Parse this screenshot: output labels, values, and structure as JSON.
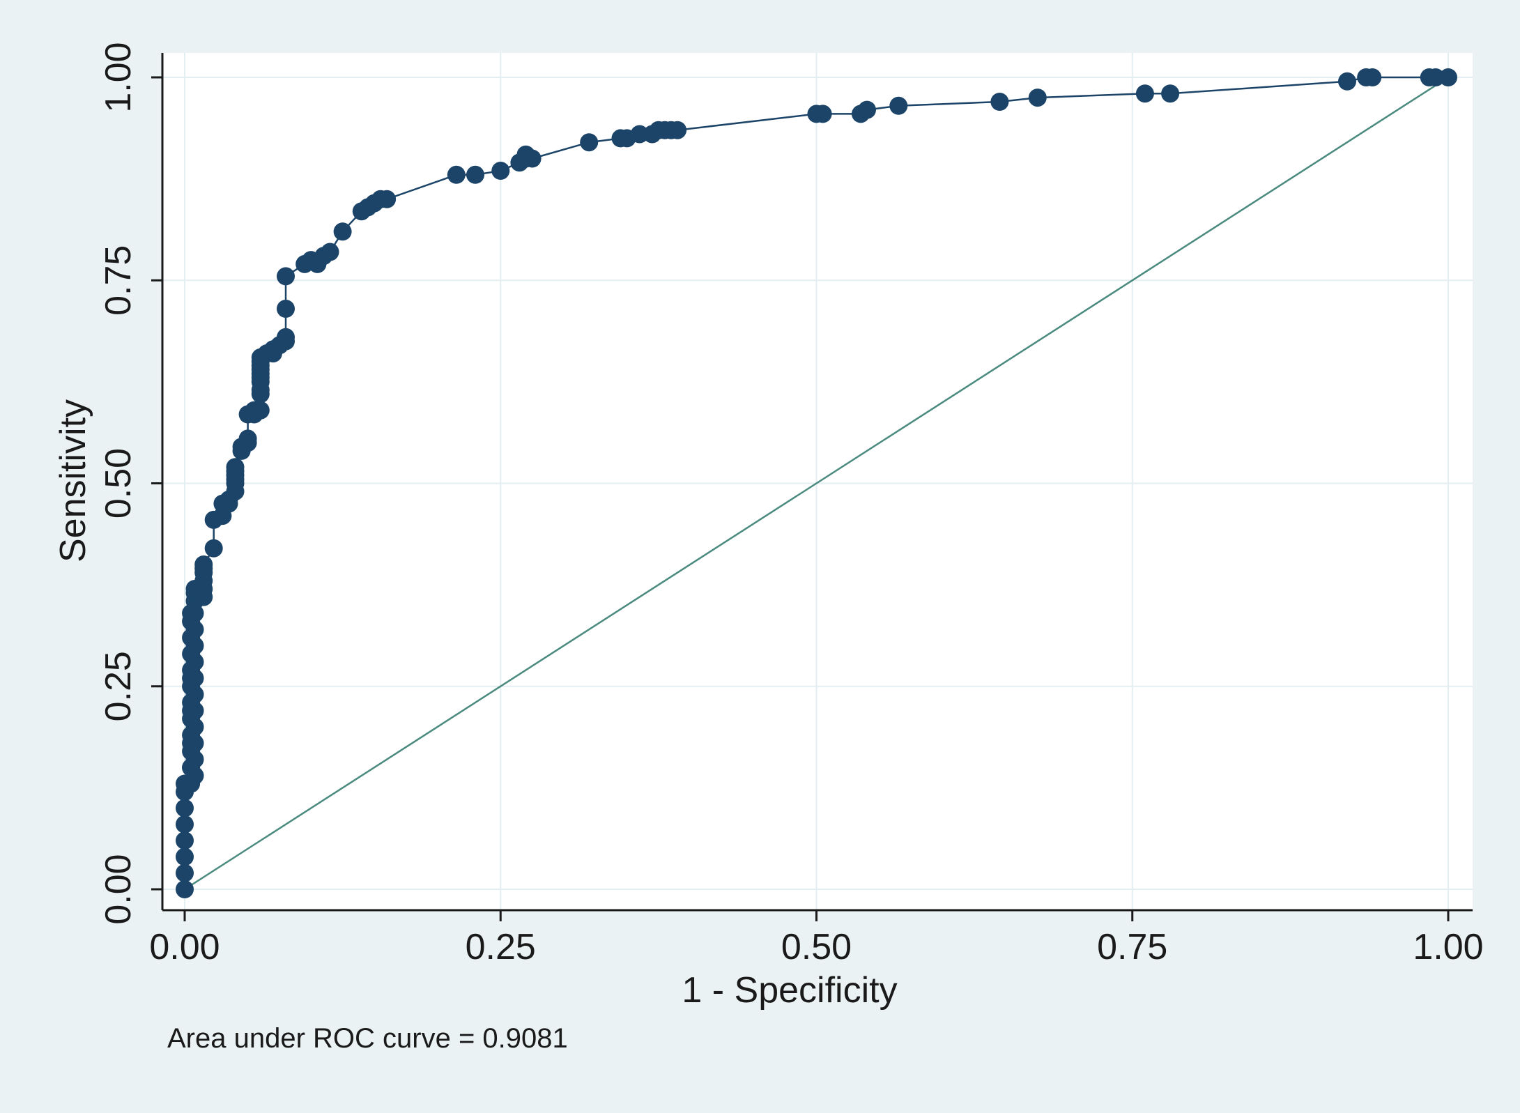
{
  "chart_data": {
    "type": "line",
    "title": "",
    "xlabel": "1 - Specificity",
    "ylabel": "Sensitivity",
    "xlim": [
      0,
      1
    ],
    "ylim": [
      0,
      1
    ],
    "xticks": [
      "0.00",
      "0.25",
      "0.50",
      "0.75",
      "1.00"
    ],
    "yticks": [
      "0.00",
      "0.25",
      "0.50",
      "0.75",
      "1.00"
    ],
    "grid": true,
    "note": "Area under ROC curve = 0.9081",
    "colors": {
      "outer_background": "#eaf2f3",
      "plot_background": "#ffffff",
      "grid": "#e3eef0",
      "roc": "#1b4468",
      "reference": "#4a8a7f",
      "axis": "#1a1a1a"
    },
    "series": [
      {
        "name": "ROC curve",
        "marker": "circle",
        "x": [
          0,
          0,
          0,
          0,
          0,
          0,
          0,
          0,
          0.005,
          0.005,
          0.005,
          0.005,
          0.005,
          0.005,
          0.005,
          0.005,
          0.005,
          0.005,
          0.005,
          0.005,
          0.005,
          0.005,
          0.005,
          0.005,
          0.008,
          0.008,
          0.008,
          0.008,
          0.008,
          0.008,
          0.008,
          0.008,
          0.008,
          0.008,
          0.008,
          0.008,
          0.008,
          0.008,
          0.015,
          0.015,
          0.015,
          0.015,
          0.015,
          0.015,
          0.023,
          0.023,
          0.03,
          0.03,
          0.035,
          0.035,
          0.04,
          0.04,
          0.04,
          0.04,
          0.04,
          0.04,
          0.045,
          0.045,
          0.05,
          0.05,
          0.05,
          0.055,
          0.055,
          0.06,
          0.06,
          0.06,
          0.06,
          0.06,
          0.06,
          0.06,
          0.06,
          0.06,
          0.06,
          0.065,
          0.07,
          0.07,
          0.075,
          0.08,
          0.08,
          0.08,
          0.08,
          0.095,
          0.1,
          0.105,
          0.11,
          0.115,
          0.125,
          0.14,
          0.145,
          0.15,
          0.155,
          0.16,
          0.215,
          0.23,
          0.25,
          0.265,
          0.27,
          0.27,
          0.275,
          0.32,
          0.345,
          0.35,
          0.36,
          0.37,
          0.375,
          0.38,
          0.385,
          0.39,
          0.5,
          0.505,
          0.535,
          0.54,
          0.565,
          0.645,
          0.675,
          0.76,
          0.78,
          0.92,
          0.935,
          0.94,
          0.985,
          0.99,
          1
        ],
        "y": [
          0,
          0.02,
          0.04,
          0.06,
          0.08,
          0.1,
          0.12,
          0.13,
          0.13,
          0.15,
          0.17,
          0.19,
          0.21,
          0.23,
          0.25,
          0.27,
          0.29,
          0.31,
          0.33,
          0.34,
          0.15,
          0.18,
          0.22,
          0.26,
          0.14,
          0.16,
          0.18,
          0.2,
          0.22,
          0.24,
          0.26,
          0.28,
          0.3,
          0.32,
          0.34,
          0.355,
          0.365,
          0.37,
          0.36,
          0.37,
          0.38,
          0.39,
          0.395,
          0.4,
          0.42,
          0.455,
          0.46,
          0.475,
          0.475,
          0.48,
          0.49,
          0.5,
          0.505,
          0.51,
          0.515,
          0.52,
          0.54,
          0.545,
          0.55,
          0.555,
          0.585,
          0.585,
          0.59,
          0.59,
          0.61,
          0.615,
          0.625,
          0.63,
          0.635,
          0.64,
          0.645,
          0.65,
          0.655,
          0.66,
          0.66,
          0.665,
          0.67,
          0.675,
          0.68,
          0.715,
          0.755,
          0.77,
          0.775,
          0.77,
          0.78,
          0.785,
          0.81,
          0.835,
          0.84,
          0.845,
          0.85,
          0.85,
          0.88,
          0.88,
          0.885,
          0.895,
          0.9,
          0.905,
          0.9,
          0.92,
          0.925,
          0.925,
          0.93,
          0.93,
          0.935,
          0.935,
          0.935,
          0.935,
          0.955,
          0.955,
          0.955,
          0.96,
          0.965,
          0.97,
          0.975,
          0.98,
          0.98,
          0.995,
          1,
          1,
          1,
          1,
          1
        ]
      },
      {
        "name": "Reference line",
        "x": [
          0,
          1
        ],
        "y": [
          0,
          1
        ]
      }
    ]
  }
}
